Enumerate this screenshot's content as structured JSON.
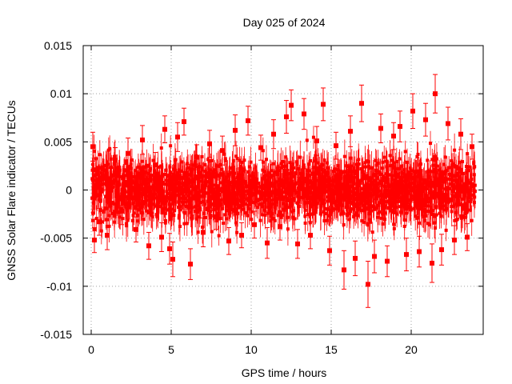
{
  "chart_data": {
    "type": "scatter",
    "title": "Day 025 of 2024",
    "xlabel": "GPS time / hours",
    "ylabel": "GNSS Solar Flare indicator / TECUs",
    "xlim": [
      -0.5,
      24.5
    ],
    "ylim": [
      -0.015,
      0.015
    ],
    "xticks": [
      0,
      5,
      10,
      15,
      20
    ],
    "xtick_labels": [
      "0",
      "5",
      "10",
      "15",
      "20"
    ],
    "yticks": [
      -0.015,
      -0.01,
      -0.005,
      0,
      0.005,
      0.01,
      0.015
    ],
    "ytick_labels": [
      "-0.015",
      "-0.01",
      "-0.005",
      "0",
      "0.005",
      "0.01",
      "0.015"
    ],
    "grid": true,
    "legend": "none",
    "error_bars": true,
    "series_color": "#ff0000",
    "series": [
      {
        "x": [
          0.1,
          0.2,
          0.3,
          0.5,
          0.8,
          1.0,
          1.5,
          1.9,
          2.3,
          2.8,
          3.2,
          3.6,
          4.0,
          4.4,
          4.6,
          4.9,
          5.1,
          5.4,
          5.8,
          6.2,
          6.6,
          7.0,
          7.4,
          7.8,
          8.2,
          8.6,
          9.0,
          9.4,
          9.8,
          10.2,
          10.6,
          11.0,
          11.4,
          11.8,
          12.2,
          12.5,
          12.9,
          13.3,
          13.7,
          14.1,
          14.5,
          14.9,
          15.3,
          15.8,
          16.2,
          16.5,
          16.9,
          17.3,
          17.7,
          18.1,
          18.5,
          18.9,
          19.3,
          19.7,
          20.1,
          20.5,
          20.9,
          21.3,
          21.5,
          21.9,
          22.3,
          22.7,
          23.1,
          23.5,
          23.8
        ],
        "y": [
          0.0045,
          -0.0052,
          0.0021,
          -0.0033,
          0.0012,
          -0.0047,
          0.0031,
          -0.0022,
          0.0038,
          -0.0041,
          0.0052,
          -0.0058,
          0.0026,
          -0.0049,
          0.0063,
          -0.0061,
          -0.0072,
          0.0055,
          0.0071,
          -0.0077,
          0.0034,
          -0.0044,
          0.0048,
          -0.0028,
          0.0041,
          -0.0053,
          0.0062,
          -0.0047,
          0.0072,
          -0.0036,
          0.0044,
          -0.0055,
          0.0058,
          -0.0038,
          0.0076,
          0.0088,
          -0.0056,
          0.0079,
          -0.0047,
          0.0051,
          0.0089,
          -0.0063,
          0.0046,
          -0.0083,
          0.0061,
          -0.0071,
          0.009,
          -0.0098,
          -0.0069,
          0.0064,
          -0.0074,
          0.0056,
          0.0066,
          -0.0067,
          0.0082,
          -0.0064,
          0.0073,
          -0.0076,
          0.01,
          -0.0062,
          0.0069,
          -0.0052,
          0.0058,
          -0.0049,
          0.0045
        ],
        "yerr": [
          0.0015,
          0.0013,
          0.0012,
          0.0014,
          0.0012,
          0.0015,
          0.0013,
          0.0014,
          0.0016,
          0.0013,
          0.0015,
          0.0014,
          0.0013,
          0.0015,
          0.0014,
          0.0016,
          0.0018,
          0.0015,
          0.0014,
          0.0016,
          0.0013,
          0.0015,
          0.0014,
          0.0013,
          0.0015,
          0.0014,
          0.0016,
          0.0013,
          0.0015,
          0.0014,
          0.0013,
          0.0016,
          0.0015,
          0.0014,
          0.0017,
          0.0016,
          0.0015,
          0.0016,
          0.0014,
          0.0015,
          0.0017,
          0.0015,
          0.0014,
          0.002,
          0.0016,
          0.0018,
          0.0019,
          0.0024,
          0.0017,
          0.0015,
          0.0016,
          0.0014,
          0.0016,
          0.0017,
          0.0018,
          0.0016,
          0.0017,
          0.002,
          0.002,
          0.0016,
          0.0017,
          0.0015,
          0.0016,
          0.0014,
          0.0013
        ]
      }
    ]
  }
}
